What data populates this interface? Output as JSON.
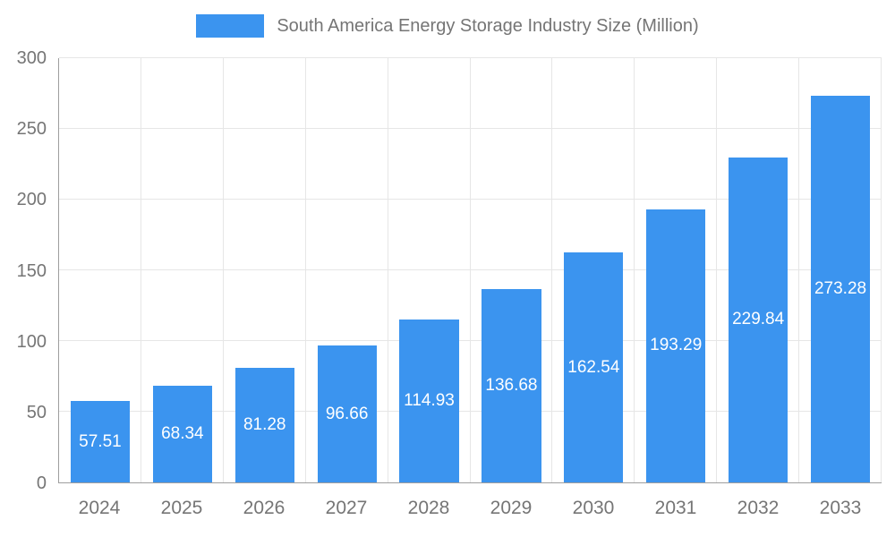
{
  "chart_data": {
    "type": "bar",
    "title": "South America Energy Storage Industry Size (Million)",
    "categories": [
      "2024",
      "2025",
      "2026",
      "2027",
      "2028",
      "2029",
      "2030",
      "2031",
      "2032",
      "2033"
    ],
    "values": [
      57.51,
      68.34,
      81.28,
      96.66,
      114.93,
      136.68,
      162.54,
      193.29,
      229.84,
      273.28
    ],
    "xlabel": "",
    "ylabel": "",
    "ylim": [
      0,
      300
    ],
    "ytick_step": 50,
    "grid": true,
    "legend_position": "top",
    "bar_color": "#3b94ef",
    "value_label_color": "#ffffff",
    "axis_text_color": "#757575",
    "grid_color": "#e6e6e6",
    "axis_line_color": "#9e9e9e",
    "background_color": "#ffffff"
  }
}
